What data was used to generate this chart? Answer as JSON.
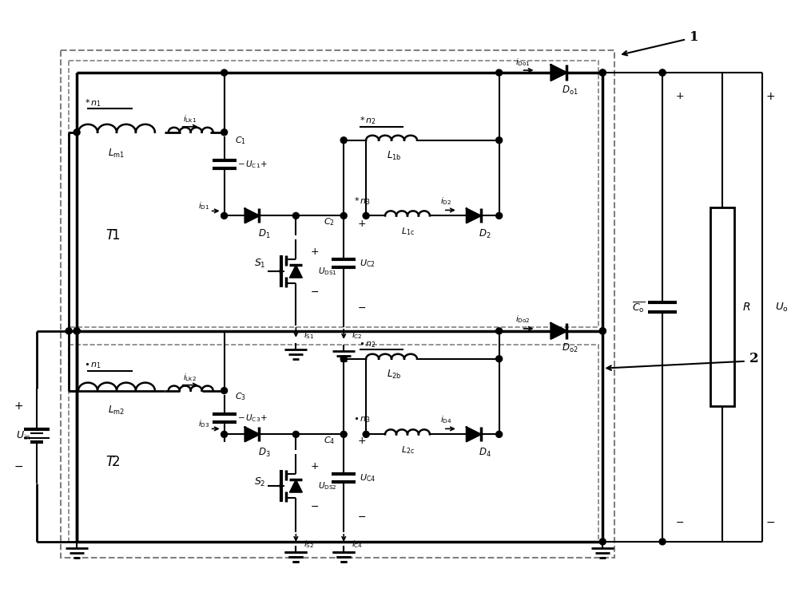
{
  "background": "#ffffff",
  "line_color": "#000000",
  "fig_width": 10.0,
  "fig_height": 7.47
}
